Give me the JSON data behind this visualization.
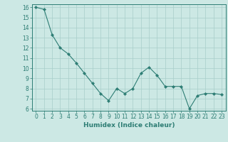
{
  "x": [
    0,
    1,
    2,
    3,
    4,
    5,
    6,
    7,
    8,
    9,
    10,
    11,
    12,
    13,
    14,
    15,
    16,
    17,
    18,
    19,
    20,
    21,
    22,
    23
  ],
  "y": [
    16.0,
    15.8,
    13.3,
    12.0,
    11.4,
    10.5,
    9.5,
    8.5,
    7.5,
    6.8,
    8.0,
    7.5,
    8.0,
    9.5,
    10.1,
    9.3,
    8.2,
    8.2,
    8.2,
    6.0,
    7.3,
    7.5,
    7.5,
    7.4
  ],
  "line_color": "#2d7d74",
  "marker": "D",
  "marker_size": 2.2,
  "bg_color": "#cce8e4",
  "grid_color": "#a8cec9",
  "xlabel": "Humidex (Indice chaleur)",
  "xlim": [
    -0.5,
    23.5
  ],
  "ylim": [
    5.8,
    16.3
  ],
  "yticks": [
    6,
    7,
    8,
    9,
    10,
    11,
    12,
    13,
    14,
    15,
    16
  ],
  "xticks": [
    0,
    1,
    2,
    3,
    4,
    5,
    6,
    7,
    8,
    9,
    10,
    11,
    12,
    13,
    14,
    15,
    16,
    17,
    18,
    19,
    20,
    21,
    22,
    23
  ],
  "xlabel_fontsize": 6.5,
  "tick_fontsize": 5.5
}
